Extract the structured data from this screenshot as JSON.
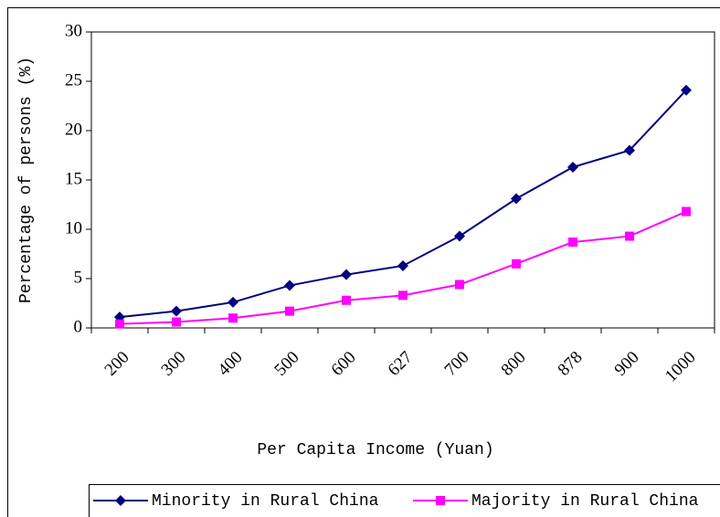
{
  "chart_data": {
    "type": "line",
    "xlabel": "Per Capita Income (Yuan)",
    "ylabel": "Percentage of persons (%)",
    "categories": [
      "200",
      "300",
      "400",
      "500",
      "600",
      "627",
      "700",
      "800",
      "878",
      "900",
      "1000"
    ],
    "series": [
      {
        "name": "Minority in Rural China",
        "color": "#000080",
        "marker": "diamond",
        "values": [
          1.1,
          1.7,
          2.6,
          4.3,
          5.4,
          6.3,
          9.3,
          13.1,
          16.3,
          18.0,
          24.1
        ]
      },
      {
        "name": "Majority in Rural China",
        "color": "#ff00ff",
        "marker": "square",
        "values": [
          0.4,
          0.6,
          1.0,
          1.7,
          2.8,
          3.3,
          4.4,
          6.5,
          8.7,
          9.3,
          11.8
        ]
      }
    ],
    "ylim": [
      0,
      30
    ],
    "yticks": [
      0,
      5,
      10,
      15,
      20,
      25,
      30
    ],
    "legend": "bottom"
  }
}
